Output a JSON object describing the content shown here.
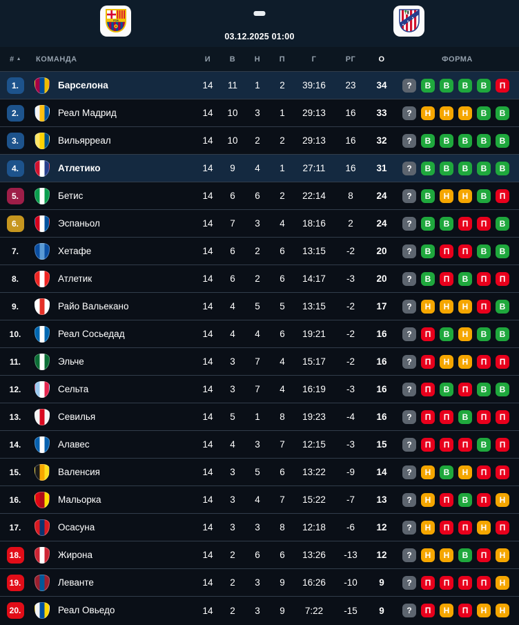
{
  "match_header": {
    "home_team_icon": "barcelona-crest",
    "away_team_icon": "atletico-crest",
    "separator_icon": "match-dash",
    "datetime": "03.12.2025 01:00"
  },
  "table": {
    "header": {
      "rank": "#",
      "sort_icon": "▲",
      "team": "КОМАНДА",
      "played": "И",
      "wins": "В",
      "draws": "Н",
      "losses": "П",
      "goals": "Г",
      "goal_diff": "РГ",
      "points": "О",
      "form": "ФОРМА"
    },
    "form_legend": {
      "В": "win",
      "Н": "draw",
      "П": "loss",
      "?": "unknown"
    },
    "rows": [
      {
        "rank": "1.",
        "zone": "blue",
        "highlighted": true,
        "team": "Барселона",
        "logo_colors": [
          "#a50044",
          "#004d98",
          "#edbb00"
        ],
        "played": 14,
        "wins": 11,
        "draws": 1,
        "losses": 2,
        "goals": "39:16",
        "goal_diff": "23",
        "points": 34,
        "form": [
          "?",
          "В",
          "В",
          "В",
          "В",
          "П"
        ]
      },
      {
        "rank": "2.",
        "zone": "blue",
        "highlighted": false,
        "team": "Реал Мадрид",
        "logo_colors": [
          "#f4f4f4",
          "#febe10",
          "#00529f"
        ],
        "played": 14,
        "wins": 10,
        "draws": 3,
        "losses": 1,
        "goals": "29:13",
        "goal_diff": "16",
        "points": 33,
        "form": [
          "?",
          "Н",
          "Н",
          "Н",
          "В",
          "В"
        ]
      },
      {
        "rank": "3.",
        "zone": "blue",
        "highlighted": false,
        "team": "Вильярреал",
        "logo_colors": [
          "#ffe667",
          "#ffd200",
          "#005187"
        ],
        "played": 14,
        "wins": 10,
        "draws": 2,
        "losses": 2,
        "goals": "29:13",
        "goal_diff": "16",
        "points": 32,
        "form": [
          "?",
          "В",
          "В",
          "В",
          "В",
          "В"
        ]
      },
      {
        "rank": "4.",
        "zone": "blue",
        "highlighted": true,
        "team": "Атлетико",
        "logo_colors": [
          "#d2122e",
          "#ffffff",
          "#273e8c"
        ],
        "played": 14,
        "wins": 9,
        "draws": 4,
        "losses": 1,
        "goals": "27:11",
        "goal_diff": "16",
        "points": 31,
        "form": [
          "?",
          "В",
          "В",
          "В",
          "В",
          "В"
        ]
      },
      {
        "rank": "5.",
        "zone": "crimson",
        "highlighted": false,
        "team": "Бетис",
        "logo_colors": [
          "#0b9e4e",
          "#ffffff",
          "#0b9e4e"
        ],
        "played": 14,
        "wins": 6,
        "draws": 6,
        "losses": 2,
        "goals": "22:14",
        "goal_diff": "8",
        "points": 24,
        "form": [
          "?",
          "В",
          "Н",
          "Н",
          "В",
          "П"
        ]
      },
      {
        "rank": "6.",
        "zone": "gold",
        "highlighted": false,
        "team": "Эспаньол",
        "logo_colors": [
          "#d6001c",
          "#ffffff",
          "#00529f"
        ],
        "played": 14,
        "wins": 7,
        "draws": 3,
        "losses": 4,
        "goals": "18:16",
        "goal_diff": "2",
        "points": 24,
        "form": [
          "?",
          "В",
          "В",
          "П",
          "П",
          "В"
        ]
      },
      {
        "rank": "7.",
        "zone": "none",
        "highlighted": false,
        "team": "Хетафе",
        "logo_colors": [
          "#0a4ea1",
          "#5b9bd5",
          "#0a4ea1"
        ],
        "played": 14,
        "wins": 6,
        "draws": 2,
        "losses": 6,
        "goals": "13:15",
        "goal_diff": "-2",
        "points": 20,
        "form": [
          "?",
          "В",
          "П",
          "П",
          "В",
          "В"
        ]
      },
      {
        "rank": "8.",
        "zone": "none",
        "highlighted": false,
        "team": "Атлетик",
        "logo_colors": [
          "#ee2523",
          "#ffffff",
          "#ee2523"
        ],
        "played": 14,
        "wins": 6,
        "draws": 2,
        "losses": 6,
        "goals": "14:17",
        "goal_diff": "-3",
        "points": 20,
        "form": [
          "?",
          "В",
          "П",
          "В",
          "П",
          "П"
        ]
      },
      {
        "rank": "9.",
        "zone": "none",
        "highlighted": false,
        "team": "Райо Вальекано",
        "logo_colors": [
          "#ffffff",
          "#e53027",
          "#ffffff"
        ],
        "played": 14,
        "wins": 4,
        "draws": 5,
        "losses": 5,
        "goals": "13:15",
        "goal_diff": "-2",
        "points": 17,
        "form": [
          "?",
          "Н",
          "Н",
          "Н",
          "П",
          "В"
        ]
      },
      {
        "rank": "10.",
        "zone": "none",
        "highlighted": false,
        "team": "Реал Сосьедад",
        "logo_colors": [
          "#0067b1",
          "#ffffff",
          "#0067b1"
        ],
        "played": 14,
        "wins": 4,
        "draws": 4,
        "losses": 6,
        "goals": "19:21",
        "goal_diff": "-2",
        "points": 16,
        "form": [
          "?",
          "П",
          "В",
          "Н",
          "В",
          "В"
        ]
      },
      {
        "rank": "11.",
        "zone": "none",
        "highlighted": false,
        "team": "Эльче",
        "logo_colors": [
          "#0b6e35",
          "#ffffff",
          "#0b6e35"
        ],
        "played": 14,
        "wins": 3,
        "draws": 7,
        "losses": 4,
        "goals": "15:17",
        "goal_diff": "-2",
        "points": 16,
        "form": [
          "?",
          "П",
          "Н",
          "Н",
          "П",
          "П"
        ]
      },
      {
        "rank": "12.",
        "zone": "none",
        "highlighted": false,
        "team": "Сельта",
        "logo_colors": [
          "#9ccaf0",
          "#ffffff",
          "#e5254e"
        ],
        "played": 14,
        "wins": 3,
        "draws": 7,
        "losses": 4,
        "goals": "16:19",
        "goal_diff": "-3",
        "points": 16,
        "form": [
          "?",
          "П",
          "В",
          "П",
          "В",
          "В"
        ]
      },
      {
        "rank": "13.",
        "zone": "none",
        "highlighted": false,
        "team": "Севилья",
        "logo_colors": [
          "#f4f4f4",
          "#d8091f",
          "#f4f4f4"
        ],
        "played": 14,
        "wins": 5,
        "draws": 1,
        "losses": 8,
        "goals": "19:23",
        "goal_diff": "-4",
        "points": 16,
        "form": [
          "?",
          "П",
          "П",
          "В",
          "П",
          "П"
        ]
      },
      {
        "rank": "14.",
        "zone": "none",
        "highlighted": false,
        "team": "Алавес",
        "logo_colors": [
          "#0761af",
          "#ffffff",
          "#0761af"
        ],
        "played": 14,
        "wins": 4,
        "draws": 3,
        "losses": 7,
        "goals": "12:15",
        "goal_diff": "-3",
        "points": 15,
        "form": [
          "?",
          "П",
          "П",
          "П",
          "В",
          "П"
        ]
      },
      {
        "rank": "15.",
        "zone": "none",
        "highlighted": false,
        "team": "Валенсия",
        "logo_colors": [
          "#1a1a1a",
          "#f7a800",
          "#ffdf1c"
        ],
        "played": 14,
        "wins": 3,
        "draws": 5,
        "losses": 6,
        "goals": "13:22",
        "goal_diff": "-9",
        "points": 14,
        "form": [
          "?",
          "Н",
          "В",
          "Н",
          "П",
          "П"
        ]
      },
      {
        "rank": "16.",
        "zone": "none",
        "highlighted": false,
        "team": "Мальорка",
        "logo_colors": [
          "#e20613",
          "#b00d18",
          "#ffdd00"
        ],
        "played": 14,
        "wins": 3,
        "draws": 4,
        "losses": 7,
        "goals": "15:22",
        "goal_diff": "-7",
        "points": 13,
        "form": [
          "?",
          "Н",
          "П",
          "В",
          "П",
          "Н"
        ]
      },
      {
        "rank": "17.",
        "zone": "none",
        "highlighted": false,
        "team": "Осасуна",
        "logo_colors": [
          "#d91a21",
          "#0a346f",
          "#d91a21"
        ],
        "played": 14,
        "wins": 3,
        "draws": 3,
        "losses": 8,
        "goals": "12:18",
        "goal_diff": "-6",
        "points": 12,
        "form": [
          "?",
          "Н",
          "П",
          "П",
          "Н",
          "П"
        ]
      },
      {
        "rank": "18.",
        "zone": "red",
        "highlighted": false,
        "team": "Жирона",
        "logo_colors": [
          "#cd2534",
          "#ffffff",
          "#cd2534"
        ],
        "played": 14,
        "wins": 2,
        "draws": 6,
        "losses": 6,
        "goals": "13:26",
        "goal_diff": "-13",
        "points": 12,
        "form": [
          "?",
          "Н",
          "Н",
          "В",
          "П",
          "Н"
        ]
      },
      {
        "rank": "19.",
        "zone": "red",
        "highlighted": false,
        "team": "Леванте",
        "logo_colors": [
          "#9c1f2e",
          "#005999",
          "#9c1f2e"
        ],
        "played": 14,
        "wins": 2,
        "draws": 3,
        "losses": 9,
        "goals": "16:26",
        "goal_diff": "-10",
        "points": 9,
        "form": [
          "?",
          "П",
          "П",
          "П",
          "П",
          "Н"
        ]
      },
      {
        "rank": "20.",
        "zone": "red",
        "highlighted": false,
        "team": "Реал Овьедо",
        "logo_colors": [
          "#f4f4f4",
          "#0050a0",
          "#ffd700"
        ],
        "played": 14,
        "wins": 2,
        "draws": 3,
        "losses": 9,
        "goals": "7:22",
        "goal_diff": "-15",
        "points": 9,
        "form": [
          "?",
          "П",
          "Н",
          "П",
          "Н",
          "Н"
        ]
      }
    ]
  },
  "colors": {
    "header_bg": "#0e1c2a",
    "thead_bg": "#0c1620",
    "row_bg": "#0a0f17",
    "row_highlight": "#142940",
    "sep": "#323d4b",
    "zone_blue": "#1d538c",
    "zone_crimson": "#9e1e48",
    "zone_gold": "#c6961f",
    "zone_red": "#e20d18",
    "form_win": "#1fa83d",
    "form_draw": "#f5a600",
    "form_loss": "#e8001c",
    "form_unknown": "#5d656f"
  }
}
